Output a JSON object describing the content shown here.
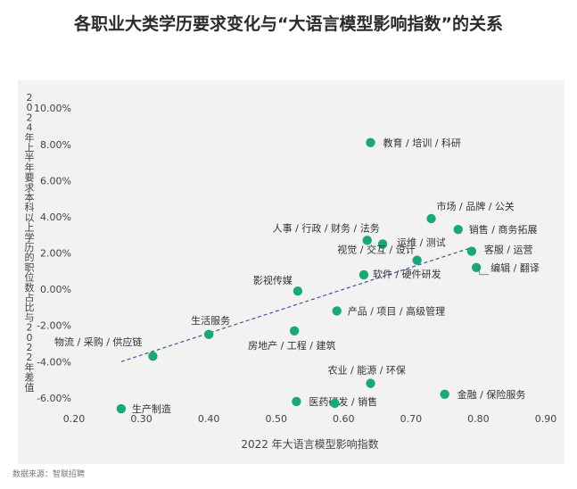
{
  "chart_data": {
    "type": "scatter",
    "title": "各职业大类学历要求变化与“大语言模型影响指数”的关系",
    "xlabel": "2022 年大语言模型影响指数",
    "ylabel": "2024 年上半年要求本科以上学历的职位数占比与 2022 年差值",
    "xlim": [
      0.2,
      0.9
    ],
    "ylim": [
      -6.5,
      10.8
    ],
    "x_ticks": [
      "0.20",
      "0.30",
      "0.40",
      "0.50",
      "0.60",
      "0.70",
      "0.80",
      "0.90"
    ],
    "y_ticks": [
      "-6.00%",
      "-4.00%",
      "-2.00%",
      "0.00%",
      "2.00%",
      "4.00%",
      "6.00%",
      "8.00%",
      "10.00%"
    ],
    "grid": false,
    "trendline": {
      "style": "dashed",
      "color": "#3a5a9a",
      "x": [
        0.27,
        0.79
      ],
      "y": [
        -4.0,
        2.3
      ]
    },
    "point_color": "#1aa874",
    "points": [
      {
        "label": "教育 / 培训 / 科研",
        "x": 0.64,
        "y": 8.1
      },
      {
        "label": "市场 / 品牌 / 公关",
        "x": 0.73,
        "y": 3.9
      },
      {
        "label": "销售 / 商务拓展",
        "x": 0.77,
        "y": 3.3
      },
      {
        "label": "人事 / 行政 / 财务 / 法务",
        "x": 0.635,
        "y": 2.7
      },
      {
        "label": "运维 / 测试",
        "x": 0.658,
        "y": 2.5
      },
      {
        "label": "客服 / 运营",
        "x": 0.79,
        "y": 2.1
      },
      {
        "label": "视觉 / 交互 / 设计",
        "x": 0.709,
        "y": 1.6
      },
      {
        "label": "编辑 / 翻译",
        "x": 0.797,
        "y": 1.2
      },
      {
        "label": "软件 / 硬件研发",
        "x": 0.63,
        "y": 0.8
      },
      {
        "label": "影视传媒",
        "x": 0.532,
        "y": -0.1
      },
      {
        "label": "产品 / 项目 / 高级管理",
        "x": 0.59,
        "y": -1.2
      },
      {
        "label": "生活服务",
        "x": 0.4,
        "y": -2.5
      },
      {
        "label": "房地产 / 工程 / 建筑",
        "x": 0.527,
        "y": -2.3
      },
      {
        "label": "物流 / 采购 / 供应链",
        "x": 0.317,
        "y": -3.7
      },
      {
        "label": "农业 / 能源 / 环保",
        "x": 0.64,
        "y": -5.2
      },
      {
        "label": "金融 / 保险服务",
        "x": 0.75,
        "y": -5.8
      },
      {
        "label": "医药研发 / 销售",
        "x": 0.53,
        "y": -6.2
      },
      {
        "label": "",
        "x": 0.587,
        "y": -6.3
      },
      {
        "label": "生产制造",
        "x": 0.27,
        "y": -6.6
      }
    ]
  },
  "source": "数据来源：智联招聘"
}
